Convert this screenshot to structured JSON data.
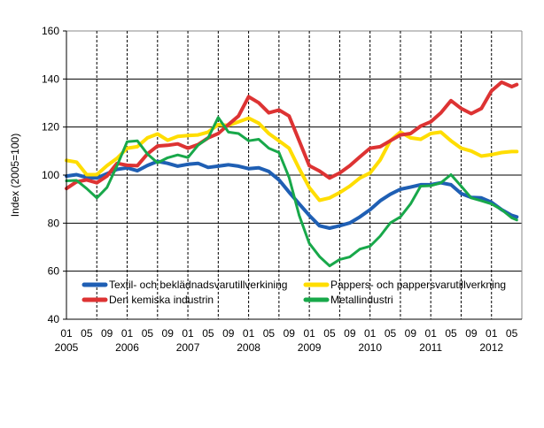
{
  "chart_data": {
    "type": "line",
    "title": "",
    "ylabel": "Index (2005=100)",
    "xlabel": "",
    "ylim": [
      40,
      160
    ],
    "y_ticks": [
      40,
      60,
      80,
      100,
      120,
      140,
      160
    ],
    "xlim": [
      "2005-01",
      "2012-07"
    ],
    "x_tick_labels": [
      "01",
      "05",
      "09",
      "01",
      "05",
      "09",
      "01",
      "05",
      "09",
      "01",
      "05",
      "09",
      "01",
      "05",
      "09",
      "01",
      "05",
      "09",
      "01",
      "05",
      "09",
      "01",
      "05"
    ],
    "x_year_labels": [
      "2005",
      "2006",
      "2007",
      "2008",
      "2009",
      "2010",
      "2011",
      "2012"
    ],
    "grid": {
      "horizontal": "solid",
      "vertical": "dashed, every 6 months"
    },
    "legend_placement": "bottom-inside",
    "x": [
      "2005-01",
      "2005-03",
      "2005-05",
      "2005-07",
      "2005-09",
      "2005-11",
      "2006-01",
      "2006-03",
      "2006-05",
      "2006-07",
      "2006-09",
      "2006-11",
      "2007-01",
      "2007-03",
      "2007-05",
      "2007-07",
      "2007-09",
      "2007-11",
      "2008-01",
      "2008-03",
      "2008-05",
      "2008-07",
      "2008-09",
      "2008-11",
      "2009-01",
      "2009-03",
      "2009-05",
      "2009-07",
      "2009-09",
      "2009-11",
      "2010-01",
      "2010-03",
      "2010-05",
      "2010-07",
      "2010-09",
      "2010-11",
      "2011-01",
      "2011-03",
      "2011-05",
      "2011-07",
      "2011-09",
      "2011-11",
      "2012-01",
      "2012-03",
      "2012-05",
      "2012-06"
    ],
    "series": [
      {
        "name": "Textil- och beklädnadsvarutillverkining",
        "color": "#1f5fb4",
        "values": [
          99.6,
          100.2,
          99,
          98.8,
          100.6,
          102.4,
          103,
          101.8,
          104,
          105.7,
          104.9,
          103.7,
          104.5,
          104.9,
          103.2,
          103.7,
          104.3,
          103.7,
          102.7,
          103,
          101.5,
          98,
          92.9,
          88,
          83.2,
          78.9,
          77.9,
          78.9,
          80.1,
          82.6,
          85.6,
          89.3,
          92,
          94.1,
          95,
          96,
          96,
          96.8,
          96,
          92.3,
          90.7,
          90.5,
          88.7,
          85.6,
          83.2,
          82.6
        ]
      },
      {
        "name": "Pappers- och pappersvarutillverkning",
        "color": "#ffdd00",
        "values": [
          106.1,
          105.4,
          100.2,
          100.2,
          103.9,
          107,
          111.2,
          111.8,
          115.5,
          117.1,
          114.5,
          116.1,
          116.5,
          116.7,
          117.9,
          121,
          120.7,
          122.2,
          123.7,
          121.6,
          117.3,
          114.3,
          111.2,
          102.7,
          94.8,
          89.5,
          90.5,
          92.7,
          95.4,
          98.8,
          100.9,
          106.3,
          114.3,
          117.9,
          115.5,
          114.9,
          117.3,
          117.9,
          114.3,
          111.2,
          110,
          107.9,
          108.5,
          109.4,
          109.8,
          109.8
        ]
      },
      {
        "name": "Den kemiska industrin",
        "color": "#dd3333",
        "values": [
          94.4,
          97.2,
          98,
          96.8,
          99.6,
          104.9,
          104.1,
          103.9,
          108.8,
          112.1,
          112.4,
          113,
          111.2,
          112.7,
          115.5,
          117.3,
          121,
          124.6,
          132.6,
          130.1,
          125.9,
          127.1,
          124.6,
          114.3,
          103.9,
          101.7,
          98.8,
          100.9,
          103.9,
          107.6,
          111.2,
          111.8,
          114.3,
          116.7,
          117.3,
          120.4,
          122.2,
          125.9,
          131,
          127.7,
          125.6,
          127.7,
          135,
          138.7,
          136.8,
          137.7
        ]
      },
      {
        "name": "Metallindustri",
        "color": "#18a84a",
        "values": [
          97.6,
          97.8,
          94.4,
          90.5,
          94.8,
          103.9,
          113.9,
          114.3,
          108.8,
          105.1,
          107.2,
          108.4,
          107.3,
          112.4,
          115.5,
          124,
          117.9,
          117.3,
          114.3,
          114.9,
          111.2,
          109.4,
          99,
          83.2,
          71.6,
          66.1,
          62.2,
          64.9,
          65.9,
          69.2,
          70.4,
          74.6,
          80.1,
          82.6,
          88,
          95.4,
          95.6,
          96.8,
          100.2,
          95.4,
          90.5,
          89.3,
          88,
          85.6,
          82.2,
          81.3
        ]
      }
    ]
  }
}
